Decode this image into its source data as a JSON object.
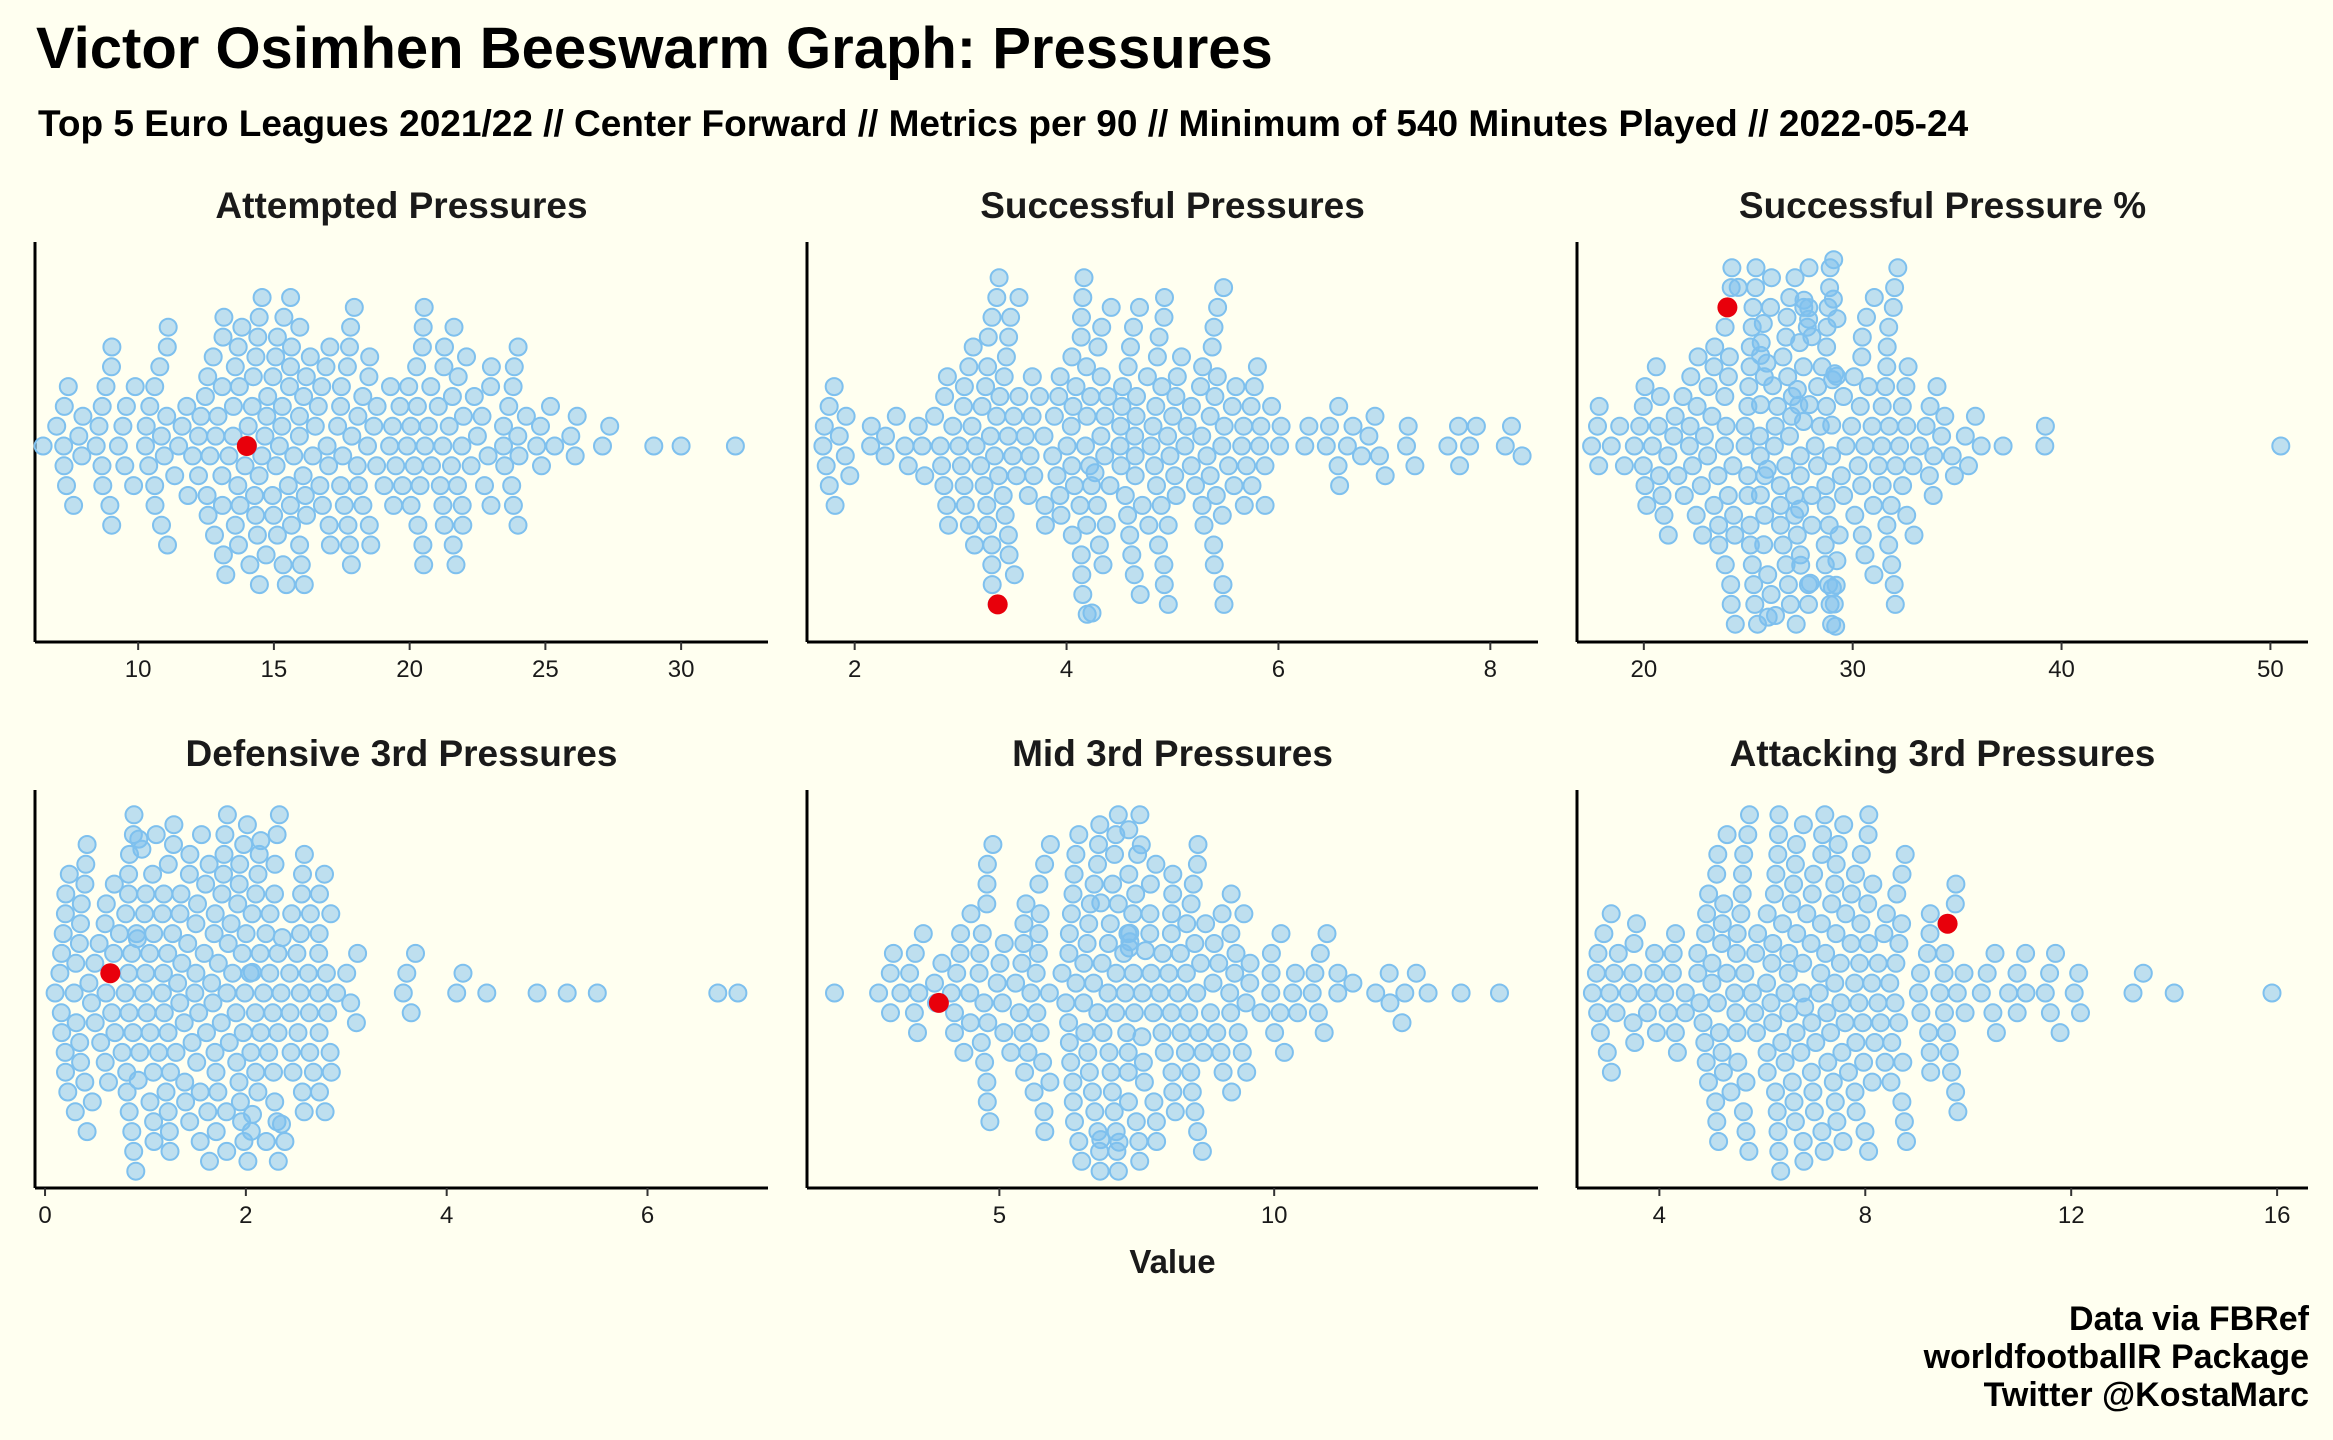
{
  "title": "Victor Osimhen Beeswarm Graph: Pressures",
  "subtitle": "Top 5 Euro Leagues 2021/22 // Center Forward // Metrics per 90 // Minimum of 540 Minutes Played // 2022-05-24",
  "caption": [
    "Data via FBRef",
    "worldfootballR Package",
    "Twitter @KostaMarc"
  ],
  "colors": {
    "background": "#FFFFF0",
    "dot": "#7EC0EE",
    "highlight": "#E8000B",
    "axis": "#000000"
  },
  "chart_data": {
    "type": "scatter",
    "layout": "beeswarm facets 2x3",
    "xlabel": "Value",
    "highlight_player": "Victor Osimhen",
    "facets": [
      {
        "title": "Attempted Pressures",
        "xlim": [
          6.2,
          33.2
        ],
        "ticks": [
          10,
          15,
          20,
          25,
          30
        ],
        "highlight_value": 14.0,
        "min": 6.5,
        "max": 32.0,
        "center": 16.5,
        "spread": 5.0,
        "n": 250,
        "outliers": [
          26.1,
          30.0,
          32.0
        ]
      },
      {
        "title": "Successful Pressures",
        "xlim": [
          1.55,
          8.45
        ],
        "ticks": [
          2,
          4,
          6,
          8
        ],
        "highlight_value": 3.35,
        "min": 1.7,
        "max": 8.3,
        "center": 4.4,
        "spread": 1.25,
        "n": 250,
        "outliers": [
          7.6,
          7.7,
          8.2,
          8.3
        ]
      },
      {
        "title": "Successful Pressure %",
        "xlim": [
          16.8,
          51.8
        ],
        "ticks": [
          20,
          30,
          40,
          50
        ],
        "highlight_value": 24.0,
        "min": 17.5,
        "max": 50.5,
        "center": 27.0,
        "spread": 3.8,
        "n": 250,
        "outliers": [
          37.2,
          39.2,
          50.5
        ]
      },
      {
        "title": "Defensive 3rd Pressures",
        "xlim": [
          -0.1,
          7.2
        ],
        "ticks": [
          0,
          2,
          4,
          6
        ],
        "highlight_value": 0.65,
        "min": 0.1,
        "max": 6.9,
        "center": 1.4,
        "spread": 0.9,
        "n": 250,
        "outliers": [
          4.1,
          4.4,
          4.9,
          5.2,
          5.5,
          6.7,
          6.9
        ]
      },
      {
        "title": "Mid 3rd Pressures",
        "xlim": [
          1.5,
          14.8
        ],
        "ticks": [
          5,
          10
        ],
        "highlight_value": 3.9,
        "min": 2.0,
        "max": 14.1,
        "center": 7.0,
        "spread": 2.0,
        "n": 250,
        "outliers": [
          12.8,
          13.4,
          14.1
        ]
      },
      {
        "title": "Attacking 3rd Pressures",
        "xlim": [
          2.4,
          16.6
        ],
        "ticks": [
          4,
          8,
          12,
          16
        ],
        "highlight_value": 9.6,
        "min": 2.7,
        "max": 15.9,
        "center": 7.0,
        "spread": 2.2,
        "n": 250,
        "outliers": [
          13.2,
          13.4,
          14.0,
          15.9
        ]
      }
    ]
  }
}
